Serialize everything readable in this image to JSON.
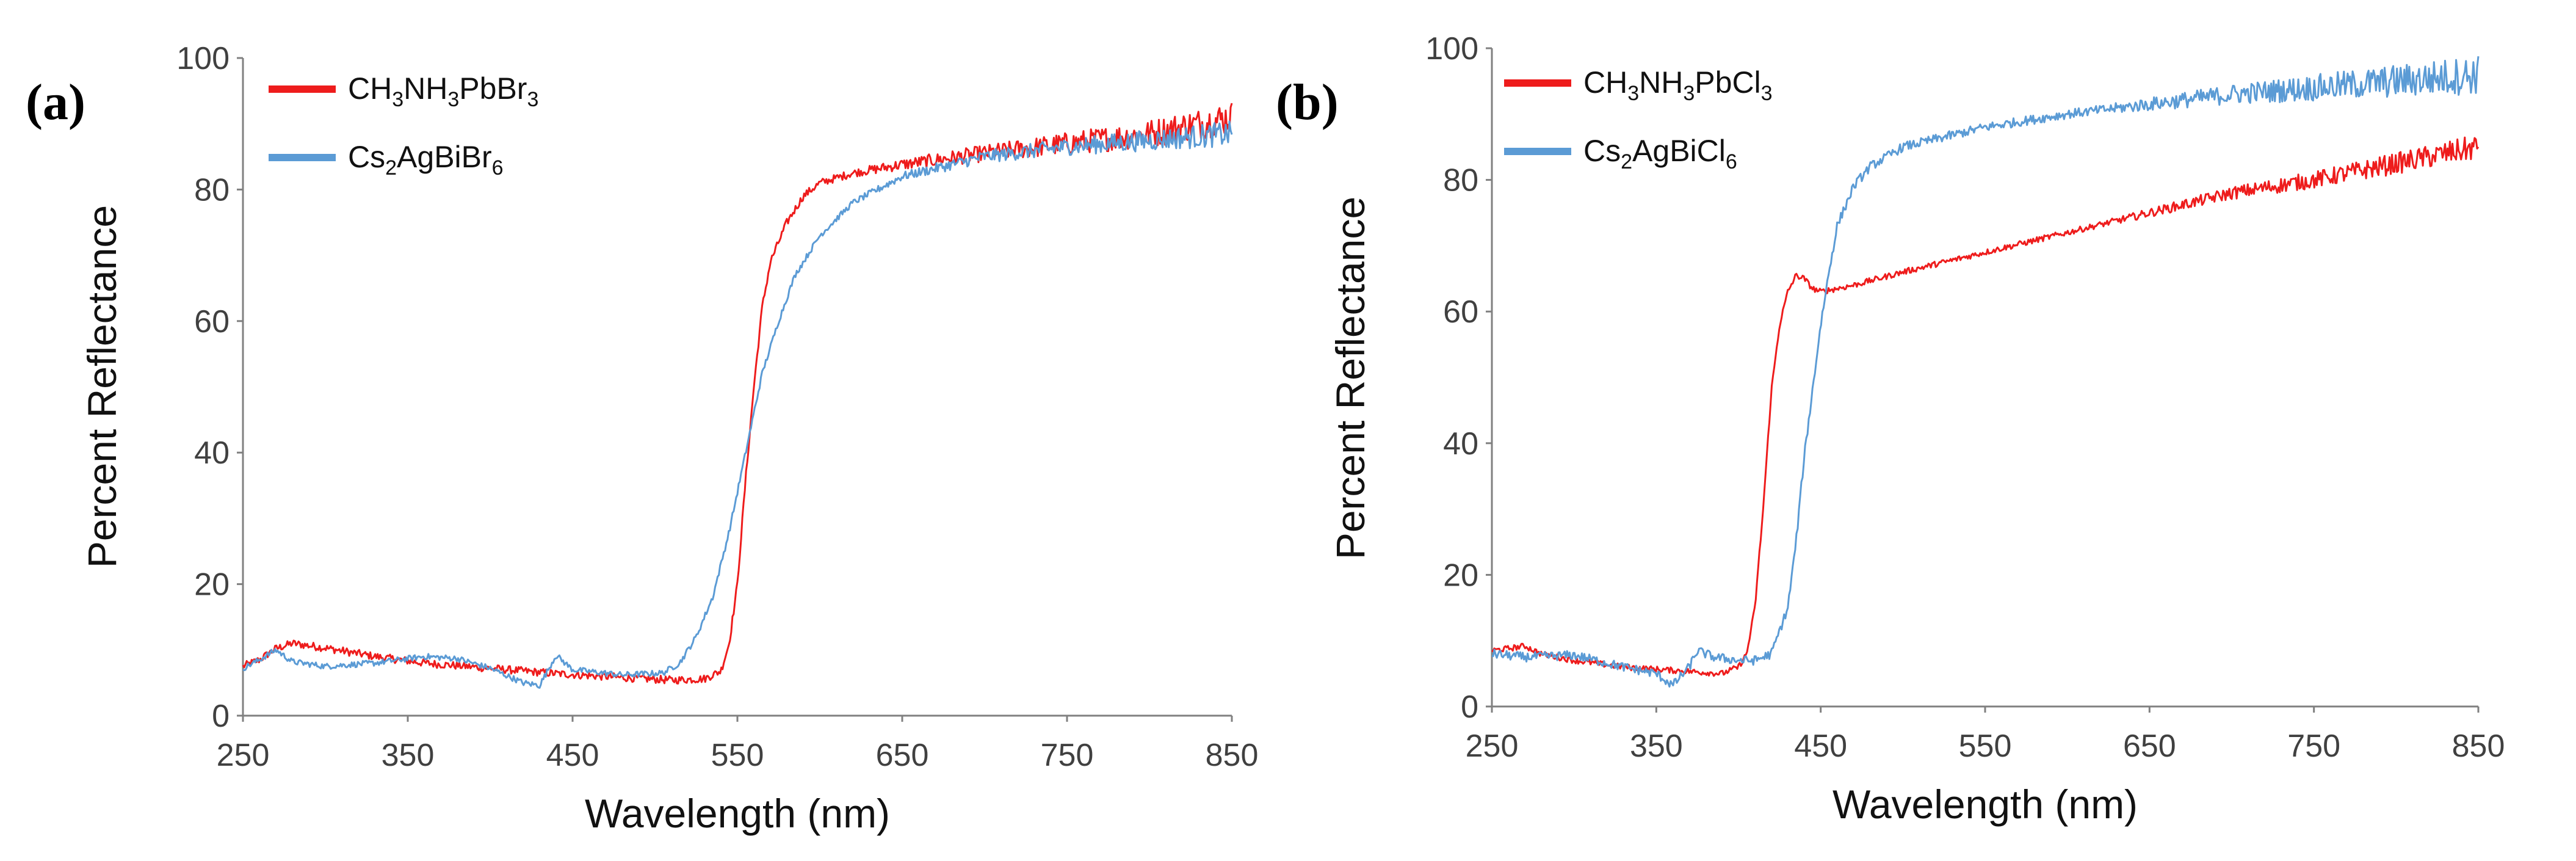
{
  "chart_data": [
    {
      "type": "line",
      "panel_label": "(a)",
      "xlabel": "Wavelength (nm)",
      "ylabel": "Percent Reflectance",
      "xlim": [
        250,
        850
      ],
      "ylim": [
        0,
        100
      ],
      "xticks": [
        250,
        350,
        450,
        550,
        650,
        750,
        850
      ],
      "yticks": [
        0,
        20,
        40,
        60,
        80,
        100
      ],
      "legend_position": "top-left",
      "series": [
        {
          "name": "CH3NH3PbBr3",
          "legend_parts": [
            [
              "CH",
              ""
            ],
            [
              "3",
              "sub"
            ],
            [
              "NH",
              ""
            ],
            [
              "3",
              "sub"
            ],
            [
              "PbBr",
              ""
            ],
            [
              "3",
              "sub"
            ]
          ],
          "color": "#ee1c1c",
          "noise": 0.6,
          "points": [
            [
              250,
              7.5
            ],
            [
              260,
              8.5
            ],
            [
              270,
              10.2
            ],
            [
              280,
              11
            ],
            [
              300,
              10.3
            ],
            [
              330,
              9.0
            ],
            [
              360,
              8.0
            ],
            [
              400,
              7.2
            ],
            [
              440,
              6.4
            ],
            [
              480,
              5.8
            ],
            [
              510,
              5.4
            ],
            [
              530,
              5.6
            ],
            [
              540,
              6.8
            ],
            [
              545,
              11
            ],
            [
              550,
              20
            ],
            [
              555,
              36
            ],
            [
              560,
              50
            ],
            [
              565,
              62
            ],
            [
              570,
              69
            ],
            [
              580,
              75
            ],
            [
              590,
              79
            ],
            [
              600,
              81
            ],
            [
              620,
              82.5
            ],
            [
              650,
              83.8
            ],
            [
              700,
              85.5
            ],
            [
              750,
              87
            ],
            [
              800,
              88.5
            ],
            [
              850,
              91
            ]
          ]
        },
        {
          "name": "Cs2AgBiBr6",
          "legend_parts": [
            [
              "Cs",
              ""
            ],
            [
              "2",
              "sub"
            ],
            [
              "AgBiBr",
              ""
            ],
            [
              "6",
              "sub"
            ]
          ],
          "color": "#5b9bd5",
          "noise": 0.45,
          "points": [
            [
              250,
              7.2
            ],
            [
              260,
              8.5
            ],
            [
              270,
              10
            ],
            [
              280,
              8.2
            ],
            [
              300,
              7.5
            ],
            [
              330,
              8.0
            ],
            [
              360,
              9.0
            ],
            [
              380,
              8.7
            ],
            [
              400,
              7.2
            ],
            [
              420,
              5.0
            ],
            [
              430,
              4.6
            ],
            [
              440,
              9.2
            ],
            [
              450,
              7.0
            ],
            [
              480,
              6.2
            ],
            [
              505,
              6.5
            ],
            [
              515,
              8
            ],
            [
              525,
              12
            ],
            [
              535,
              18
            ],
            [
              545,
              28
            ],
            [
              555,
              40
            ],
            [
              565,
              52
            ],
            [
              575,
              60
            ],
            [
              585,
              67
            ],
            [
              600,
              73
            ],
            [
              620,
              78
            ],
            [
              650,
              82
            ],
            [
              700,
              85
            ],
            [
              750,
              86.5
            ],
            [
              800,
              87.5
            ],
            [
              850,
              88.5
            ]
          ]
        }
      ]
    },
    {
      "type": "line",
      "panel_label": "(b)",
      "xlabel": "Wavelength (nm)",
      "ylabel": "Percent Reflectance",
      "xlim": [
        250,
        850
      ],
      "ylim": [
        0,
        100
      ],
      "xticks": [
        250,
        350,
        450,
        550,
        650,
        750,
        850
      ],
      "yticks": [
        0,
        20,
        40,
        60,
        80,
        100
      ],
      "legend_position": "top-left",
      "series": [
        {
          "name": "CH3NH3PbCl3",
          "legend_parts": [
            [
              "CH",
              ""
            ],
            [
              "3",
              "sub"
            ],
            [
              "NH",
              ""
            ],
            [
              "3",
              "sub"
            ],
            [
              "PbCl",
              ""
            ],
            [
              "3",
              "sub"
            ]
          ],
          "color": "#ee1c1c",
          "noise": 0.45,
          "points": [
            [
              250,
              8.5
            ],
            [
              260,
              8.8
            ],
            [
              270,
              9.2
            ],
            [
              280,
              8.0
            ],
            [
              300,
              7.0
            ],
            [
              330,
              6.0
            ],
            [
              360,
              5.5
            ],
            [
              390,
              5.0
            ],
            [
              400,
              6.0
            ],
            [
              405,
              8
            ],
            [
              410,
              15
            ],
            [
              415,
              30
            ],
            [
              420,
              48
            ],
            [
              425,
              58
            ],
            [
              430,
              63
            ],
            [
              435,
              65.5
            ],
            [
              440,
              65
            ],
            [
              445,
              63.5
            ],
            [
              450,
              63
            ],
            [
              470,
              64
            ],
            [
              500,
              66
            ],
            [
              550,
              69
            ],
            [
              600,
              72
            ],
            [
              650,
              75
            ],
            [
              700,
              78
            ],
            [
              750,
              80
            ],
            [
              800,
              82.5
            ],
            [
              850,
              85
            ]
          ]
        },
        {
          "name": "Cs2AgBiCl6",
          "legend_parts": [
            [
              "Cs",
              ""
            ],
            [
              "2",
              "sub"
            ],
            [
              "AgBiCl",
              ""
            ],
            [
              "6",
              "sub"
            ]
          ],
          "color": "#5b9bd5",
          "noise": 0.7,
          "points": [
            [
              250,
              8.0
            ],
            [
              270,
              7.5
            ],
            [
              300,
              7.8
            ],
            [
              330,
              6.0
            ],
            [
              350,
              5.0
            ],
            [
              360,
              3.2
            ],
            [
              370,
              6
            ],
            [
              375,
              8.5
            ],
            [
              385,
              7.5
            ],
            [
              400,
              7.0
            ],
            [
              410,
              7.0
            ],
            [
              420,
              8
            ],
            [
              430,
              15
            ],
            [
              435,
              25
            ],
            [
              440,
              38
            ],
            [
              445,
              48
            ],
            [
              450,
              58
            ],
            [
              455,
              66
            ],
            [
              460,
              73
            ],
            [
              470,
              79
            ],
            [
              480,
              82
            ],
            [
              500,
              85
            ],
            [
              550,
              88
            ],
            [
              600,
              90
            ],
            [
              650,
              91.5
            ],
            [
              700,
              93
            ],
            [
              750,
              94
            ],
            [
              800,
              95
            ],
            [
              850,
              96
            ]
          ]
        }
      ]
    }
  ]
}
